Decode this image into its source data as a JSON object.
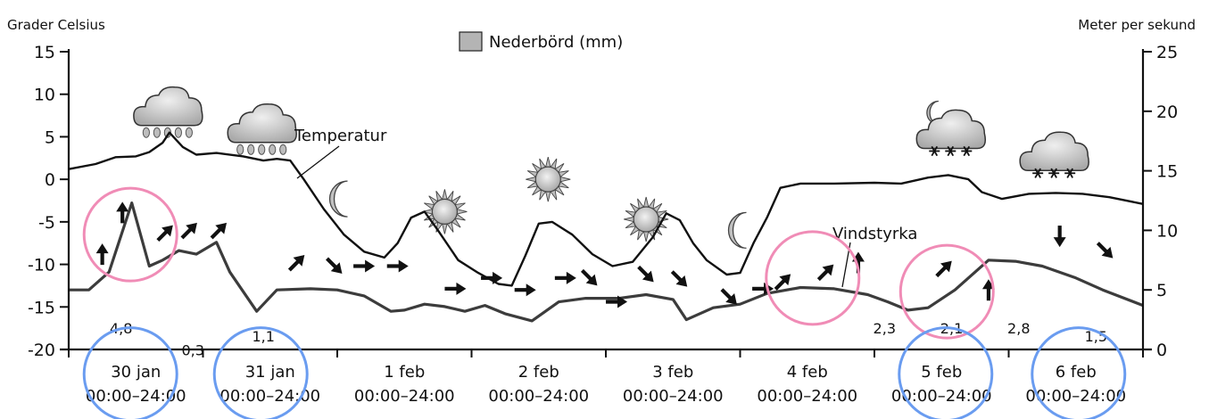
{
  "chart_data": {
    "type": "line",
    "left_axis_label": "Grader Celsius",
    "right_axis_label": "Meter per sekund",
    "left_ticks": [
      "15",
      "10",
      "5",
      "0",
      "-5",
      "-10",
      "-15",
      "-20"
    ],
    "right_ticks": [
      "25",
      "20",
      "15",
      "10",
      "5",
      "0"
    ],
    "ylim_left": [
      -20,
      15
    ],
    "ylim_right": [
      0,
      25
    ],
    "legend": {
      "label": "Nederbörd (mm)",
      "position": "top-center"
    },
    "annotations": {
      "temperature": "Temperatur",
      "wind": "Vindstyrka"
    },
    "days": [
      {
        "date": "30 jan",
        "period": "00:00–24:00"
      },
      {
        "date": "31 jan",
        "period": "00:00–24:00"
      },
      {
        "date": "1 feb",
        "period": "00:00–24:00"
      },
      {
        "date": "2 feb",
        "period": "00:00–24:00"
      },
      {
        "date": "3 feb",
        "period": "00:00–24:00"
      },
      {
        "date": "4 feb",
        "period": "00:00–24:00"
      },
      {
        "date": "5 feb",
        "period": "00:00–24:00"
      },
      {
        "date": "6 feb",
        "period": "00:00–24:00"
      }
    ],
    "precipitation": [
      {
        "day": 0,
        "from": 0.13,
        "to": 0.65,
        "value": 4.8,
        "label": "4,8"
      },
      {
        "day": 0,
        "from": 0.65,
        "to": 1.2,
        "value": 0.3,
        "label": "0,3"
      },
      {
        "day": 1,
        "from": 0.2,
        "to": 0.7,
        "value": 1.1,
        "label": "1,1"
      },
      {
        "day": 6,
        "from": -0.15,
        "to": 0.3,
        "value": 2.3,
        "label": "2,3"
      },
      {
        "day": 6,
        "from": 0.3,
        "to": 0.85,
        "value": 2.1,
        "label": "2,1"
      },
      {
        "day": 7,
        "from": -0.15,
        "to": 0.3,
        "value": 2.8,
        "label": "2,8"
      },
      {
        "day": 7,
        "from": 0.3,
        "to": 1.0,
        "value": 1.5,
        "label": "1,5"
      }
    ],
    "temperature_series": {
      "unit": "°C",
      "points": [
        [
          0.0,
          1.2
        ],
        [
          0.2,
          1.8
        ],
        [
          0.35,
          2.6
        ],
        [
          0.5,
          2.7
        ],
        [
          0.6,
          3.2
        ],
        [
          0.7,
          4.3
        ],
        [
          0.75,
          5.5
        ],
        [
          0.85,
          3.8
        ],
        [
          0.95,
          2.9
        ],
        [
          1.1,
          3.1
        ],
        [
          1.3,
          2.7
        ],
        [
          1.45,
          2.2
        ],
        [
          1.55,
          2.4
        ],
        [
          1.65,
          2.2
        ],
        [
          1.75,
          0.0
        ],
        [
          1.9,
          -3.5
        ],
        [
          2.05,
          -6.5
        ],
        [
          2.2,
          -8.5
        ],
        [
          2.35,
          -9.2
        ],
        [
          2.45,
          -7.5
        ],
        [
          2.55,
          -4.5
        ],
        [
          2.65,
          -3.8
        ],
        [
          2.75,
          -6.0
        ],
        [
          2.9,
          -9.5
        ],
        [
          3.05,
          -11.0
        ],
        [
          3.2,
          -12.3
        ],
        [
          3.3,
          -12.5
        ],
        [
          3.4,
          -9.0
        ],
        [
          3.5,
          -5.2
        ],
        [
          3.6,
          -5.0
        ],
        [
          3.75,
          -6.5
        ],
        [
          3.9,
          -8.8
        ],
        [
          4.05,
          -10.2
        ],
        [
          4.2,
          -9.7
        ],
        [
          4.35,
          -6.8
        ],
        [
          4.45,
          -4.0
        ],
        [
          4.55,
          -4.8
        ],
        [
          4.65,
          -7.5
        ],
        [
          4.75,
          -9.5
        ],
        [
          4.9,
          -11.2
        ],
        [
          5.0,
          -11.0
        ],
        [
          5.1,
          -7.5
        ],
        [
          5.2,
          -4.5
        ],
        [
          5.3,
          -1.0
        ],
        [
          5.45,
          -0.5
        ],
        [
          5.7,
          -0.5
        ],
        [
          6.0,
          -0.4
        ],
        [
          6.2,
          -0.5
        ],
        [
          6.4,
          0.2
        ],
        [
          6.55,
          0.5
        ],
        [
          6.7,
          0.0
        ],
        [
          6.8,
          -1.5
        ],
        [
          6.95,
          -2.3
        ],
        [
          7.15,
          -1.7
        ],
        [
          7.35,
          -1.6
        ],
        [
          7.55,
          -1.7
        ],
        [
          7.75,
          -2.1
        ],
        [
          8.0,
          -2.9
        ]
      ]
    },
    "wind_series": {
      "unit": "m/s",
      "points": [
        [
          0.0,
          5.0
        ],
        [
          0.15,
          5.0
        ],
        [
          0.3,
          6.5
        ],
        [
          0.47,
          12.3
        ],
        [
          0.6,
          7.0
        ],
        [
          0.7,
          7.5
        ],
        [
          0.82,
          8.3
        ],
        [
          0.95,
          8.0
        ],
        [
          1.1,
          9.0
        ],
        [
          1.2,
          6.5
        ],
        [
          1.4,
          3.2
        ],
        [
          1.55,
          5.0
        ],
        [
          1.8,
          5.1
        ],
        [
          2.0,
          5.0
        ],
        [
          2.2,
          4.5
        ],
        [
          2.4,
          3.2
        ],
        [
          2.5,
          3.3
        ],
        [
          2.65,
          3.8
        ],
        [
          2.8,
          3.6
        ],
        [
          2.95,
          3.2
        ],
        [
          3.1,
          3.7
        ],
        [
          3.25,
          3.0
        ],
        [
          3.45,
          2.4
        ],
        [
          3.65,
          4.0
        ],
        [
          3.85,
          4.3
        ],
        [
          4.1,
          4.3
        ],
        [
          4.3,
          4.6
        ],
        [
          4.5,
          4.2
        ],
        [
          4.6,
          2.5
        ],
        [
          4.8,
          3.5
        ],
        [
          5.0,
          3.8
        ],
        [
          5.2,
          4.7
        ],
        [
          5.45,
          5.2
        ],
        [
          5.7,
          5.1
        ],
        [
          5.95,
          4.6
        ],
        [
          6.1,
          4.0
        ],
        [
          6.25,
          3.3
        ],
        [
          6.4,
          3.5
        ],
        [
          6.6,
          5.0
        ],
        [
          6.85,
          7.5
        ],
        [
          7.05,
          7.4
        ],
        [
          7.25,
          7.0
        ],
        [
          7.5,
          6.0
        ],
        [
          7.7,
          5.0
        ],
        [
          8.0,
          3.7
        ]
      ]
    },
    "wind_arrows": [
      {
        "day": 0.25,
        "wind": 8.0,
        "dir": "up"
      },
      {
        "day": 0.4,
        "wind": 11.5,
        "dir": "up"
      },
      {
        "day": 0.72,
        "wind": 9.8,
        "dir": "up-right"
      },
      {
        "day": 0.9,
        "wind": 10.0,
        "dir": "up-right"
      },
      {
        "day": 1.12,
        "wind": 10.0,
        "dir": "up-right"
      },
      {
        "day": 1.7,
        "wind": 7.3,
        "dir": "up-right"
      },
      {
        "day": 1.98,
        "wind": 7.0,
        "dir": "down-right"
      },
      {
        "day": 2.2,
        "wind": 7.0,
        "dir": "right"
      },
      {
        "day": 2.45,
        "wind": 7.0,
        "dir": "right"
      },
      {
        "day": 2.88,
        "wind": 5.1,
        "dir": "right"
      },
      {
        "day": 3.15,
        "wind": 6.0,
        "dir": "right"
      },
      {
        "day": 3.4,
        "wind": 5.0,
        "dir": "right"
      },
      {
        "day": 3.7,
        "wind": 6.0,
        "dir": "right"
      },
      {
        "day": 3.88,
        "wind": 6.0,
        "dir": "down-right"
      },
      {
        "day": 4.08,
        "wind": 4.0,
        "dir": "right"
      },
      {
        "day": 4.3,
        "wind": 6.3,
        "dir": "down-right"
      },
      {
        "day": 4.55,
        "wind": 5.9,
        "dir": "down-right"
      },
      {
        "day": 4.92,
        "wind": 4.4,
        "dir": "down-right"
      },
      {
        "day": 5.17,
        "wind": 5.1,
        "dir": "right"
      },
      {
        "day": 5.32,
        "wind": 5.7,
        "dir": "up-right"
      },
      {
        "day": 5.64,
        "wind": 6.5,
        "dir": "up-right"
      },
      {
        "day": 5.88,
        "wind": 7.3,
        "dir": "up"
      },
      {
        "day": 6.52,
        "wind": 6.8,
        "dir": "up-right"
      },
      {
        "day": 6.85,
        "wind": 5.0,
        "dir": "up"
      },
      {
        "day": 7.38,
        "wind": 9.5,
        "dir": "down"
      },
      {
        "day": 7.72,
        "wind": 8.3,
        "dir": "down-right"
      }
    ],
    "weather_icons": [
      {
        "day": 0.75,
        "temp": 7.8,
        "kind": "rain-cloud"
      },
      {
        "day": 1.45,
        "temp": 5.8,
        "kind": "rain-cloud"
      },
      {
        "day": 2.05,
        "temp": -2.3,
        "kind": "moon"
      },
      {
        "day": 2.8,
        "temp": -3.8,
        "kind": "sun"
      },
      {
        "day": 3.57,
        "temp": 0.0,
        "kind": "sun"
      },
      {
        "day": 4.3,
        "temp": -4.7,
        "kind": "sun"
      },
      {
        "day": 5.02,
        "temp": -6.0,
        "kind": "moon"
      },
      {
        "day": 6.58,
        "temp": 5.1,
        "kind": "snow-cloud-moon"
      },
      {
        "day": 7.35,
        "temp": 2.5,
        "kind": "snow-cloud"
      }
    ],
    "highlights": [
      {
        "color": "pink",
        "day": 0.46,
        "temp": -6.5
      },
      {
        "color": "pink",
        "day": 5.54,
        "temp": -11.6
      },
      {
        "color": "pink",
        "day": 6.54,
        "temp": -13.2
      },
      {
        "color": "blue",
        "day": 0.46,
        "temp": -22.9
      },
      {
        "color": "blue",
        "day": 1.43,
        "temp": -22.9
      },
      {
        "color": "blue",
        "day": 6.53,
        "temp": -22.9
      },
      {
        "color": "blue",
        "day": 7.52,
        "temp": -22.9
      }
    ],
    "colors": {
      "precip_fill": "#b4b4b4",
      "temperature_line": "#111111",
      "wind_line": "#3c3c3c",
      "highlight_pink": "#f08cb6",
      "highlight_blue": "#6a9cf0",
      "icon_grey": "#c8c8c8"
    }
  }
}
